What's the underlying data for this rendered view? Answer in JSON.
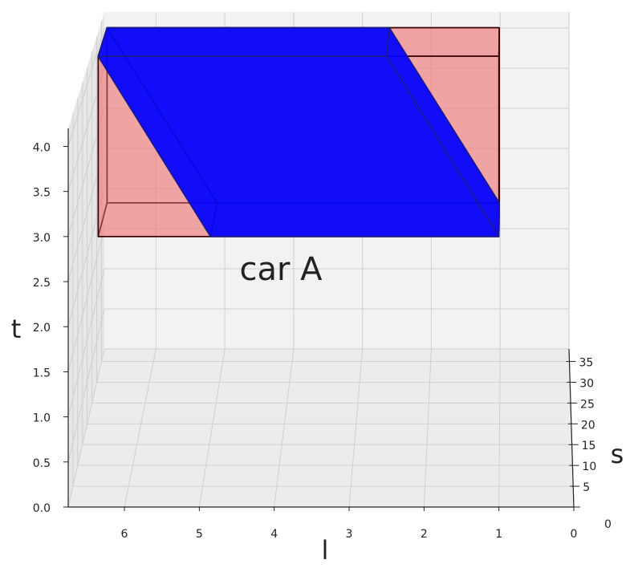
{
  "chart_data": {
    "type": "solids3d",
    "annotation": "car A",
    "xlabel": "l",
    "ylabel": "s",
    "zlabel": "t",
    "xlim": [
      0,
      6.75
    ],
    "xticks": [
      0,
      1,
      2,
      3,
      4,
      5,
      6
    ],
    "ylim": [
      0,
      38
    ],
    "yticks": [
      0,
      5,
      10,
      15,
      20,
      25,
      30,
      35
    ],
    "zlim": [
      0,
      4.2
    ],
    "zticks": [
      {
        "value": 0,
        "label": "0.0"
      },
      {
        "value": 0.5,
        "label": "0.5"
      },
      {
        "value": 1,
        "label": "1.0"
      },
      {
        "value": 1.5,
        "label": "1.5"
      },
      {
        "value": 2,
        "label": "2.0"
      },
      {
        "value": 2.5,
        "label": "2.5"
      },
      {
        "value": 3,
        "label": "3.0"
      },
      {
        "value": 3.5,
        "label": "3.5"
      },
      {
        "value": 4,
        "label": "4.0"
      }
    ],
    "grid": true,
    "solids": [
      {
        "color": "#f08080",
        "edge": "#3a0000",
        "opacity": 0.45,
        "x": [
          1,
          6.35
        ],
        "y": [
          0,
          10
        ],
        "z": [
          3,
          5
        ],
        "shear": 0
      },
      {
        "color": "#0000ff",
        "edge": "#1a1a8b",
        "opacity": 0.72,
        "x": [
          1,
          4.85
        ],
        "y": [
          0,
          10
        ],
        "z": [
          3,
          5
        ],
        "shear": 1.5
      }
    ]
  }
}
